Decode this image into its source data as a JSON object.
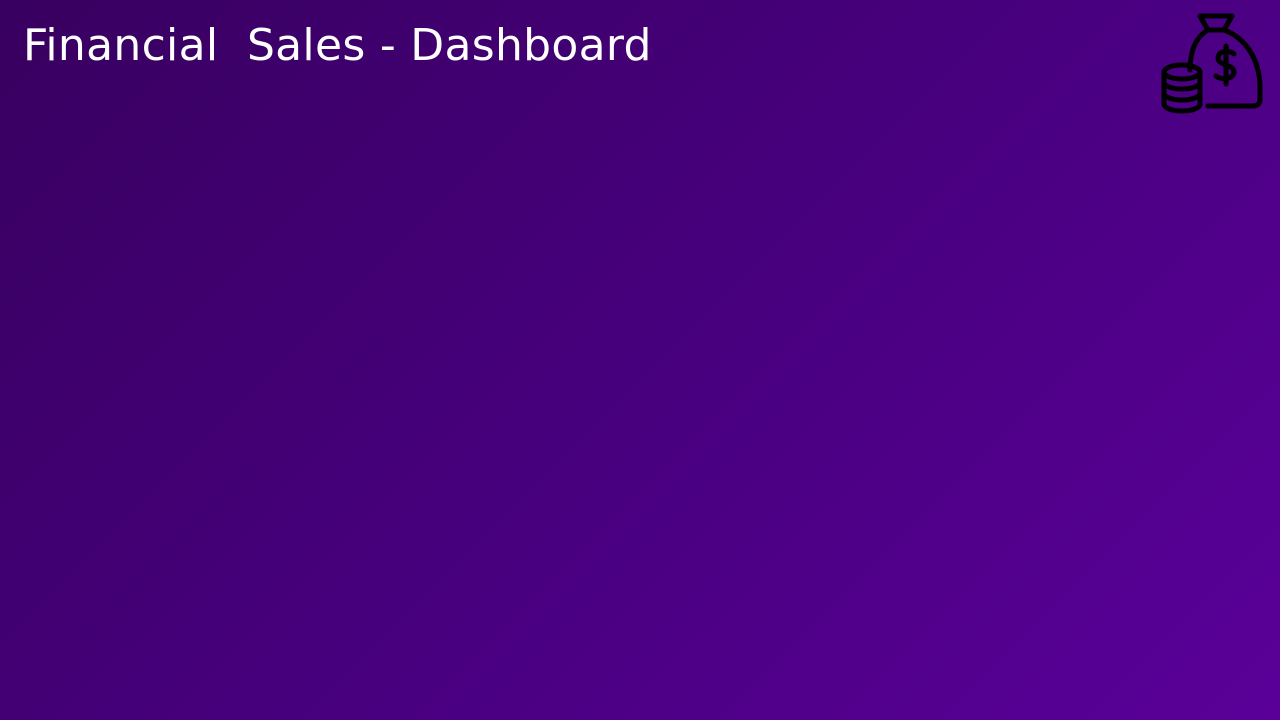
{
  "header": {
    "title": "Financial  Sales - Dashboard",
    "logo_icon": "money-bag-coins-icon"
  },
  "colors": {
    "background_start": "#380060",
    "background_end": "#5a0099",
    "title_text": "#ffffff",
    "icon_stroke": "#000000"
  }
}
